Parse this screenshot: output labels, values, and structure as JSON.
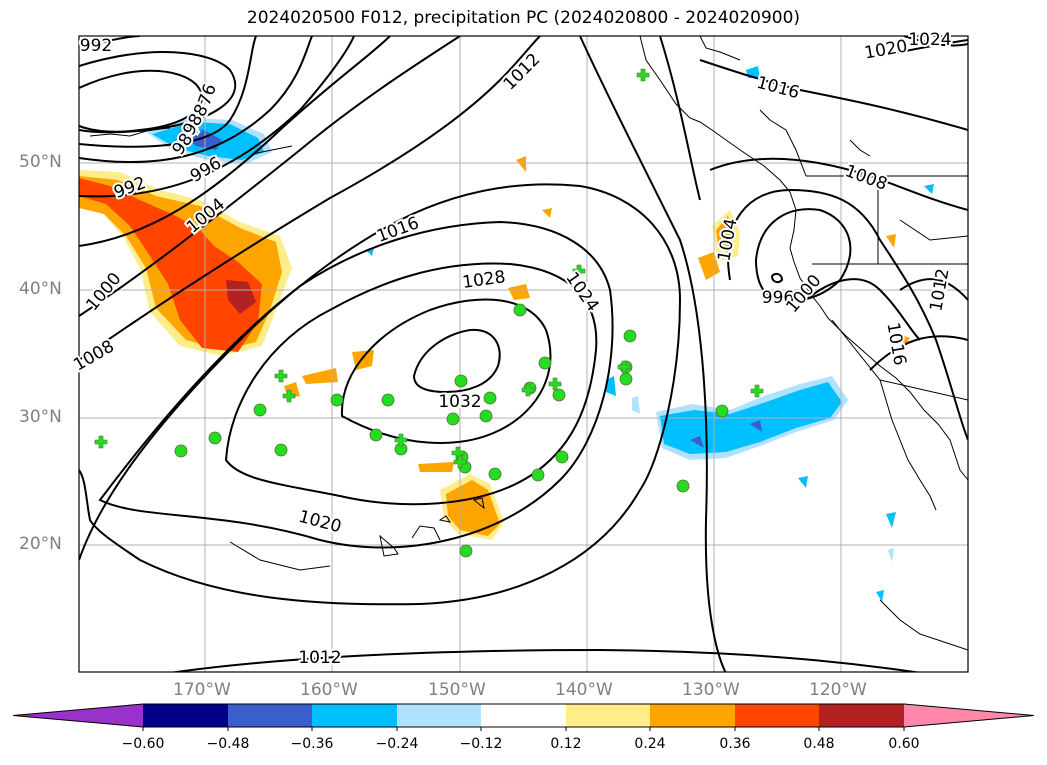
{
  "title": "2024020500 F012, precipitation PC (2024020800 - 2024020900)",
  "lat_labels": [
    "50°N",
    "40°N",
    "30°N",
    "20°N"
  ],
  "lon_labels": [
    "170°W",
    "160°W",
    "150°W",
    "140°W",
    "130°W",
    "120°W"
  ],
  "contour_labels": [
    "992",
    "984",
    "976",
    "988",
    "996",
    "1004",
    "992",
    "1000",
    "1008",
    "1016",
    "1012",
    "1028",
    "1024",
    "1032",
    "1020",
    "1012",
    "1020",
    "1024",
    "1016",
    "1008",
    "1004",
    "996",
    "1000",
    "1012",
    "1016"
  ],
  "colorbar": {
    "ticks": [
      "−0.60",
      "−0.48",
      "−0.36",
      "−0.24",
      "−0.12",
      "0.12",
      "0.24",
      "0.36",
      "0.48",
      "0.60"
    ],
    "colors": [
      "#9932cc",
      "#00008b",
      "#3a5fcd",
      "#00bfff",
      "#b0e2ff",
      "#ffffff",
      "#ffec8b",
      "#ffa500",
      "#ff4500",
      "#b22222",
      "#ff88aa"
    ]
  },
  "marker_color": "#22dd22",
  "map_extent": {
    "lon": [
      -180,
      -110
    ],
    "lat": [
      10,
      60
    ]
  }
}
